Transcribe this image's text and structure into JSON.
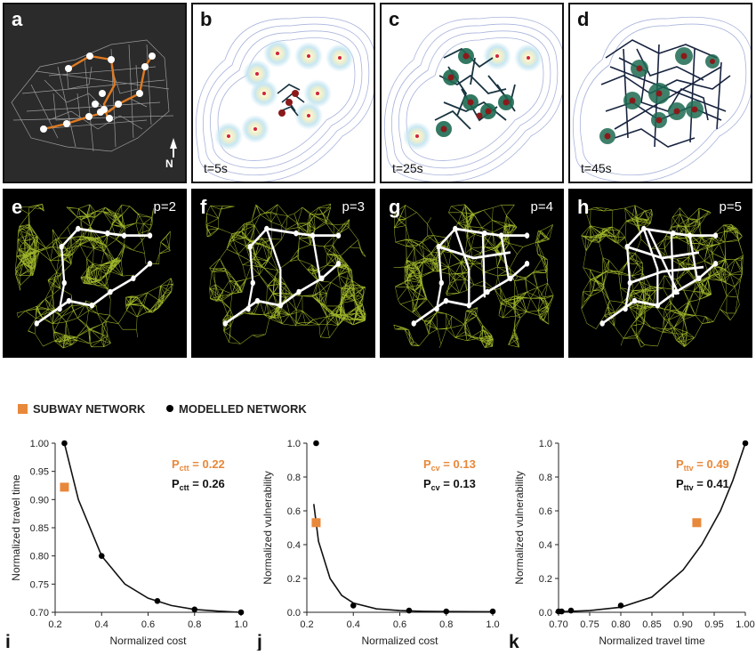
{
  "panels_top": {
    "a": {
      "label": "a",
      "north_label": "N"
    },
    "b": {
      "label": "b",
      "time": "t=5s"
    },
    "c": {
      "label": "c",
      "time": "t=25s"
    },
    "d": {
      "label": "d",
      "time": "t=45s"
    }
  },
  "panels_mid": [
    {
      "label": "e",
      "p": "p=2"
    },
    {
      "label": "f",
      "p": "p=3"
    },
    {
      "label": "g",
      "p": "p=4"
    },
    {
      "label": "h",
      "p": "p=5"
    }
  ],
  "legend": {
    "subway": "SUBWAY NETWORK",
    "modelled": "MODELLED NETWORK"
  },
  "colors": {
    "subway": "#e8883a",
    "modelled": "#000000",
    "mesh": "#b7d430"
  },
  "chart_data": [
    {
      "panel": "i",
      "type": "scatter",
      "xlabel": "Normalized cost",
      "ylabel": "Normalized travel time",
      "xlim": [
        0.2,
        1.0
      ],
      "ylim": [
        0.7,
        1.0
      ],
      "xticks": [
        "0.2",
        "0.4",
        "0.6",
        "0.8",
        "1.0"
      ],
      "yticks": [
        "0.70",
        "0.75",
        "0.80",
        "0.85",
        "0.90",
        "0.95",
        "1.00"
      ],
      "modelled": {
        "x": [
          0.24,
          0.4,
          0.64,
          0.8,
          1.0
        ],
        "y": [
          1.0,
          0.8,
          0.72,
          0.705,
          0.7
        ]
      },
      "subway": {
        "x": [
          0.24
        ],
        "y": [
          0.922
        ]
      },
      "fit": {
        "x": [
          0.24,
          0.3,
          0.4,
          0.5,
          0.6,
          0.7,
          0.8,
          0.9,
          1.0
        ],
        "y": [
          1.0,
          0.9,
          0.8,
          0.75,
          0.725,
          0.712,
          0.705,
          0.702,
          0.7
        ]
      },
      "p_subway_main": "P",
      "p_subway_sub": "ctt",
      "p_subway_val": " = 0.22",
      "p_model_main": "P",
      "p_model_sub": "ctt",
      "p_model_val": " = 0.26"
    },
    {
      "panel": "j",
      "type": "scatter",
      "xlabel": "Normalized cost",
      "ylabel": "Normalized vulnerability",
      "xlim": [
        0.2,
        1.0
      ],
      "ylim": [
        0.0,
        1.0
      ],
      "xticks": [
        "0.2",
        "0.4",
        "0.6",
        "0.8",
        "1.0"
      ],
      "yticks": [
        "0.0",
        "0.2",
        "0.4",
        "0.6",
        "0.8",
        "1.0"
      ],
      "modelled": {
        "x": [
          0.24,
          0.4,
          0.64,
          0.8,
          1.0
        ],
        "y": [
          1.0,
          0.04,
          0.01,
          0.005,
          0.005
        ]
      },
      "subway": {
        "x": [
          0.24
        ],
        "y": [
          0.53
        ]
      },
      "fit": {
        "x": [
          0.23,
          0.25,
          0.3,
          0.35,
          0.4,
          0.5,
          0.6,
          0.7,
          0.8,
          1.0
        ],
        "y": [
          0.64,
          0.42,
          0.2,
          0.1,
          0.055,
          0.02,
          0.01,
          0.006,
          0.004,
          0.003
        ]
      },
      "p_subway_main": "P",
      "p_subway_sub": "cv",
      "p_subway_val": " = 0.13",
      "p_model_main": "P",
      "p_model_sub": "cv",
      "p_model_val": " = 0.13"
    },
    {
      "panel": "k",
      "type": "scatter",
      "xlabel": "Normalized travel time",
      "ylabel": "Normalized vulnerability",
      "xlim": [
        0.7,
        1.0
      ],
      "ylim": [
        0.0,
        1.0
      ],
      "xticks": [
        "0.70",
        "0.75",
        "0.80",
        "0.85",
        "0.90",
        "0.95",
        "1.00"
      ],
      "yticks": [
        "0.0",
        "0.2",
        "0.4",
        "0.6",
        "0.8",
        "1.0"
      ],
      "modelled": {
        "x": [
          0.7,
          0.705,
          0.72,
          0.8,
          1.0
        ],
        "y": [
          0.005,
          0.005,
          0.01,
          0.04,
          1.0
        ]
      },
      "subway": {
        "x": [
          0.922
        ],
        "y": [
          0.53
        ]
      },
      "fit": {
        "x": [
          0.7,
          0.75,
          0.8,
          0.85,
          0.9,
          0.93,
          0.96,
          0.98,
          1.0
        ],
        "y": [
          0.003,
          0.01,
          0.03,
          0.09,
          0.25,
          0.4,
          0.6,
          0.78,
          1.0
        ]
      },
      "p_subway_main": "P",
      "p_subway_sub": "ttv",
      "p_subway_val": " = 0.49",
      "p_model_main": "P",
      "p_model_sub": "ttv",
      "p_model_val": " = 0.41"
    }
  ]
}
